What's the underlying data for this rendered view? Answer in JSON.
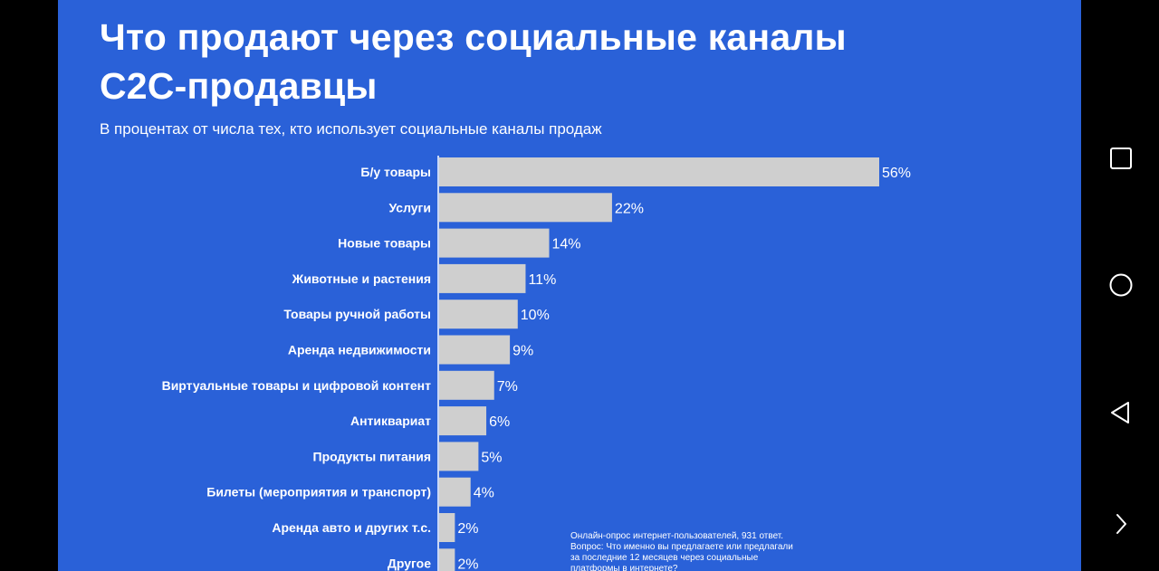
{
  "slide": {
    "title": "Что продают через социальные каналы C2C-продавцы",
    "subtitle": "В процентах от числа тех, кто использует социальные каналы продаж",
    "footnote": "Онлайн-опрос интернет-пользователей, 931 ответ. Вопрос: Что именно вы предлагаете или предлагали за последние 12 месяцев через социальные платформы в интернете?",
    "background_color": "#2a61d8"
  },
  "chart_data": {
    "type": "bar",
    "orientation": "horizontal",
    "categories": [
      "Б/у товары",
      "Услуги",
      "Новые товары",
      "Животные и растения",
      "Товары ручной работы",
      "Аренда недвижимости",
      "Виртуальные товары и цифровой контент",
      "Антиквариат",
      "Продукты питания",
      "Билеты (мероприятия и транспорт)",
      "Аренда авто и других т.с.",
      "Другое"
    ],
    "values": [
      56,
      22,
      14,
      11,
      10,
      9,
      7,
      6,
      5,
      4,
      2,
      2
    ],
    "value_labels": [
      "56%",
      "22%",
      "14%",
      "11%",
      "10%",
      "9%",
      "7%",
      "6%",
      "5%",
      "4%",
      "2%",
      "2%"
    ],
    "unit": "%",
    "bar_color": "#cfcfcf",
    "axis_line_color": "#ffffff",
    "xlim": [
      0,
      56
    ],
    "grid": false
  },
  "system_nav": {
    "icons": [
      "recent-apps-icon",
      "home-icon",
      "back-icon",
      "expand-icon"
    ]
  }
}
